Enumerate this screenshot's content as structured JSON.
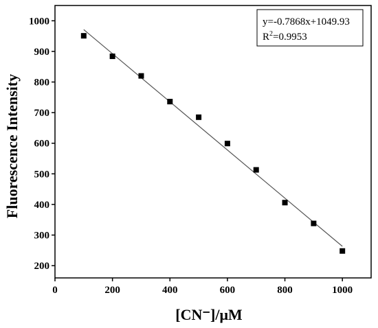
{
  "chart_data": {
    "type": "scatter",
    "xlabel": "[CN⁻]/μM",
    "ylabel": "Fluorescence Intensity",
    "xlim": [
      0,
      1100
    ],
    "ylim": [
      160,
      1050
    ],
    "xticks": [
      0,
      200,
      400,
      600,
      800,
      1000
    ],
    "yticks": [
      200,
      300,
      400,
      500,
      600,
      700,
      800,
      900,
      1000
    ],
    "x": [
      100,
      200,
      300,
      400,
      500,
      600,
      700,
      800,
      900,
      1000
    ],
    "y": [
      951,
      884,
      820,
      736,
      685,
      599,
      513,
      406,
      338,
      248
    ],
    "fit": {
      "slope": -0.7868,
      "intercept": 1049.93,
      "x_range": [
        100,
        1000
      ]
    },
    "annotation": {
      "equation": "y=-0.7868x+1049.93",
      "r2_prefix": "R",
      "r2_sup": "2",
      "r2_value": "=0.9953",
      "position": "top-right"
    },
    "grid": false
  }
}
